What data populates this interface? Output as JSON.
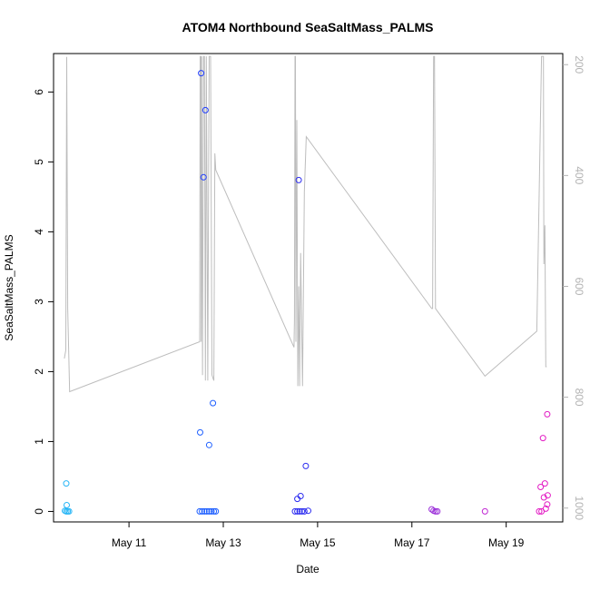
{
  "chart_data": {
    "type": "scatter",
    "title": "ATOM4 Northbound SeaSaltMass_PALMS",
    "xlabel": "Date",
    "ylabel": "SeaSaltMass_PALMS",
    "x_ticks": [
      "May 11",
      "May 13",
      "May 15",
      "May 17",
      "May 19"
    ],
    "x_tick_values": [
      11,
      13,
      15,
      17,
      19
    ],
    "xlim": [
      9.4,
      20.2
    ],
    "ylim": [
      -0.15,
      6.55
    ],
    "y_ticks": [
      0,
      1,
      2,
      3,
      4,
      5,
      6
    ],
    "secondary_axis": {
      "ticks": [
        200,
        400,
        600,
        800,
        1000
      ],
      "reversed": true,
      "range": [
        180,
        1025
      ],
      "color": "#b3b3b3"
    },
    "grid": false,
    "legend": "none",
    "points": [
      {
        "x": 9.67,
        "y": 0.4,
        "c": "#29b6f6"
      },
      {
        "x": 9.68,
        "y": 0.09,
        "c": "#29b6f6"
      },
      {
        "x": 9.64,
        "y": 0.01,
        "c": "#29b6f6"
      },
      {
        "x": 9.67,
        "y": 0.0,
        "c": "#29b6f6"
      },
      {
        "x": 9.7,
        "y": 0.0,
        "c": "#29b6f6"
      },
      {
        "x": 9.73,
        "y": 0.0,
        "c": "#29b6f6"
      },
      {
        "x": 12.53,
        "y": 6.27,
        "c": "#1e3cff"
      },
      {
        "x": 12.62,
        "y": 5.74,
        "c": "#1e3cff"
      },
      {
        "x": 12.58,
        "y": 4.78,
        "c": "#1e3cff"
      },
      {
        "x": 12.78,
        "y": 1.55,
        "c": "#1e5fff"
      },
      {
        "x": 12.51,
        "y": 1.13,
        "c": "#1e5fff"
      },
      {
        "x": 12.7,
        "y": 0.95,
        "c": "#1e5fff"
      },
      {
        "x": 12.5,
        "y": 0.0,
        "c": "#1e5fff"
      },
      {
        "x": 12.55,
        "y": 0.0,
        "c": "#1e5fff"
      },
      {
        "x": 12.6,
        "y": 0.0,
        "c": "#1e5fff"
      },
      {
        "x": 12.65,
        "y": 0.0,
        "c": "#1e5fff"
      },
      {
        "x": 12.7,
        "y": 0.0,
        "c": "#1e5fff"
      },
      {
        "x": 12.75,
        "y": 0.0,
        "c": "#1e5fff"
      },
      {
        "x": 12.8,
        "y": 0.0,
        "c": "#1e5fff"
      },
      {
        "x": 12.84,
        "y": 0.0,
        "c": "#1e5fff"
      },
      {
        "x": 14.6,
        "y": 4.74,
        "c": "#2d2df0"
      },
      {
        "x": 14.75,
        "y": 0.65,
        "c": "#2d2df0"
      },
      {
        "x": 14.64,
        "y": 0.22,
        "c": "#2d2df0"
      },
      {
        "x": 14.57,
        "y": 0.18,
        "c": "#2d2df0"
      },
      {
        "x": 14.52,
        "y": 0.0,
        "c": "#2d2df0"
      },
      {
        "x": 14.57,
        "y": 0.0,
        "c": "#2d2df0"
      },
      {
        "x": 14.62,
        "y": 0.0,
        "c": "#2d2df0"
      },
      {
        "x": 14.67,
        "y": 0.0,
        "c": "#2d2df0"
      },
      {
        "x": 14.72,
        "y": 0.0,
        "c": "#2d2df0"
      },
      {
        "x": 14.8,
        "y": 0.01,
        "c": "#2d2df0"
      },
      {
        "x": 17.42,
        "y": 0.03,
        "c": "#9b30d9"
      },
      {
        "x": 17.46,
        "y": 0.01,
        "c": "#9b30d9"
      },
      {
        "x": 17.5,
        "y": 0.0,
        "c": "#9b30d9"
      },
      {
        "x": 17.54,
        "y": 0.0,
        "c": "#9b30d9"
      },
      {
        "x": 18.55,
        "y": 0.0,
        "c": "#c026d3"
      },
      {
        "x": 19.87,
        "y": 1.39,
        "c": "#e31bc4"
      },
      {
        "x": 19.78,
        "y": 1.05,
        "c": "#e31bc4"
      },
      {
        "x": 19.82,
        "y": 0.4,
        "c": "#e31bc4"
      },
      {
        "x": 19.73,
        "y": 0.35,
        "c": "#e31bc4"
      },
      {
        "x": 19.88,
        "y": 0.23,
        "c": "#e31bc4"
      },
      {
        "x": 19.8,
        "y": 0.2,
        "c": "#e31bc4"
      },
      {
        "x": 19.87,
        "y": 0.1,
        "c": "#e31bc4"
      },
      {
        "x": 19.84,
        "y": 0.04,
        "c": "#e31bc4"
      },
      {
        "x": 19.7,
        "y": 0.0,
        "c": "#e31bc4"
      },
      {
        "x": 19.75,
        "y": 0.0,
        "c": "#e31bc4"
      }
    ],
    "line_color": "#bdbdbd",
    "line": [
      [
        9.63,
        730
      ],
      [
        9.66,
        715
      ],
      [
        9.68,
        186
      ],
      [
        9.7,
        640
      ],
      [
        9.74,
        790
      ],
      [
        12.5,
        700
      ],
      [
        12.51,
        185
      ],
      [
        12.52,
        185
      ],
      [
        12.53,
        700
      ],
      [
        12.54,
        185
      ],
      [
        12.56,
        760
      ],
      [
        12.58,
        185
      ],
      [
        12.6,
        185
      ],
      [
        12.62,
        770
      ],
      [
        12.64,
        185
      ],
      [
        12.67,
        770
      ],
      [
        12.7,
        185
      ],
      [
        12.73,
        185
      ],
      [
        12.76,
        760
      ],
      [
        12.8,
        770
      ],
      [
        12.82,
        360
      ],
      [
        12.84,
        390
      ],
      [
        14.5,
        710
      ],
      [
        14.51,
        660
      ],
      [
        14.52,
        185
      ],
      [
        14.53,
        185
      ],
      [
        14.54,
        700
      ],
      [
        14.56,
        300
      ],
      [
        14.58,
        780
      ],
      [
        14.6,
        600
      ],
      [
        14.62,
        780
      ],
      [
        14.64,
        540
      ],
      [
        14.68,
        780
      ],
      [
        14.72,
        430
      ],
      [
        14.76,
        330
      ],
      [
        17.42,
        640
      ],
      [
        17.44,
        640
      ],
      [
        17.46,
        185
      ],
      [
        17.48,
        185
      ],
      [
        17.5,
        640
      ],
      [
        18.55,
        762
      ],
      [
        19.65,
        681
      ],
      [
        19.75,
        185
      ],
      [
        19.79,
        185
      ],
      [
        19.8,
        560
      ],
      [
        19.82,
        490
      ],
      [
        19.84,
        745
      ],
      [
        19.86,
        745
      ]
    ]
  }
}
